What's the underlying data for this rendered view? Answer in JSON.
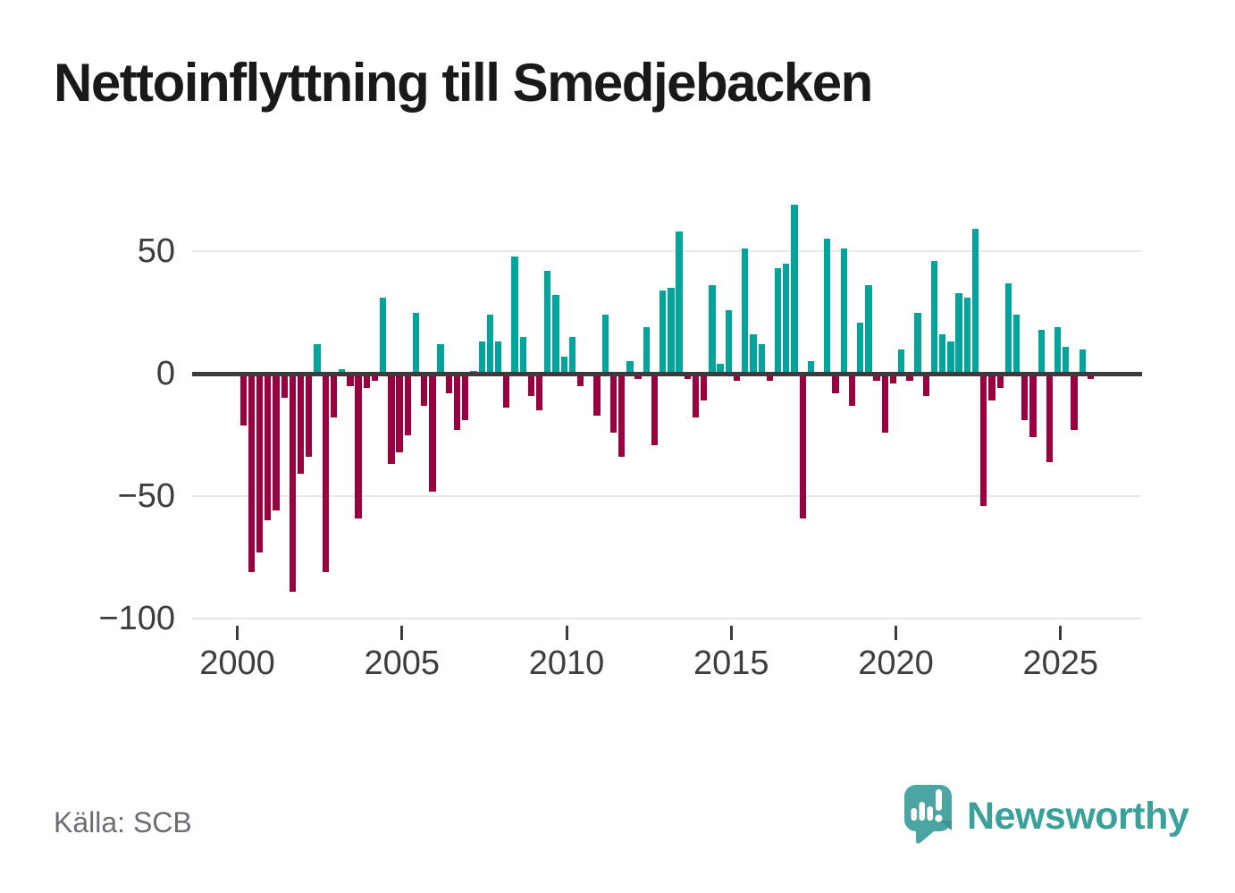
{
  "title": "Nettoinflyttning till Smedjebacken",
  "source": "Källa: SCB",
  "branding": {
    "logo_text": "Newsworthy",
    "logo_icon": "newsworthy-speech-bubble-bar-chart-icon"
  },
  "colors": {
    "positive_bar": "#00a49b",
    "negative_bar": "#9a0040",
    "zero_line": "#3b3b3b",
    "gridline": "#e8e8e8",
    "axis_text": "#3d3d3d",
    "title_text": "#191919",
    "source_text": "#6a6e74",
    "brand_teal": "#3aa09a",
    "logo_bubble": "#4ba6a3",
    "logo_bubble_shade": "#3f948f"
  },
  "chart_data": {
    "type": "bar",
    "title": "Nettoinflyttning till Smedjebacken",
    "frequency": "quarterly",
    "start_period": "2000 Q1",
    "end_period": "2025 Q4",
    "grid": "horizontal",
    "legend": "none",
    "ylim": [
      -100,
      72
    ],
    "y_ticks": [
      {
        "value": 50,
        "label": "50"
      },
      {
        "value": 0,
        "label": "0"
      },
      {
        "value": -50,
        "label": "−50"
      },
      {
        "value": -100,
        "label": "−100"
      }
    ],
    "x_ticks": [
      {
        "year": 2000,
        "label": "2000"
      },
      {
        "year": 2005,
        "label": "2005"
      },
      {
        "year": 2010,
        "label": "2010"
      },
      {
        "year": 2015,
        "label": "2015"
      },
      {
        "year": 2020,
        "label": "2020"
      },
      {
        "year": 2025,
        "label": "2025"
      }
    ],
    "values_by_year": [
      {
        "year": 2000,
        "q": [
          -21,
          -81,
          -73,
          -60
        ]
      },
      {
        "year": 2001,
        "q": [
          -56,
          -10,
          -89,
          -41
        ]
      },
      {
        "year": 2002,
        "q": [
          -34,
          12,
          -81,
          -18
        ]
      },
      {
        "year": 2003,
        "q": [
          2,
          -5,
          -59,
          -6
        ]
      },
      {
        "year": 2004,
        "q": [
          -3,
          31,
          -37,
          -32
        ]
      },
      {
        "year": 2005,
        "q": [
          -25,
          25,
          -13,
          -48
        ]
      },
      {
        "year": 2006,
        "q": [
          12,
          -8,
          -23,
          -19
        ]
      },
      {
        "year": 2007,
        "q": [
          1,
          13,
          24,
          13
        ]
      },
      {
        "year": 2008,
        "q": [
          -14,
          48,
          15,
          -9
        ]
      },
      {
        "year": 2009,
        "q": [
          -15,
          42,
          32,
          7
        ]
      },
      {
        "year": 2010,
        "q": [
          15,
          -5,
          0,
          -17
        ]
      },
      {
        "year": 2011,
        "q": [
          24,
          -24,
          -34,
          5
        ]
      },
      {
        "year": 2012,
        "q": [
          -2,
          19,
          -29,
          34
        ]
      },
      {
        "year": 2013,
        "q": [
          35,
          58,
          -2,
          -18
        ]
      },
      {
        "year": 2014,
        "q": [
          -11,
          36,
          4,
          26
        ]
      },
      {
        "year": 2015,
        "q": [
          -3,
          51,
          16,
          12
        ]
      },
      {
        "year": 2016,
        "q": [
          -3,
          43,
          45,
          69
        ]
      },
      {
        "year": 2017,
        "q": [
          -59,
          5,
          0,
          55
        ]
      },
      {
        "year": 2018,
        "q": [
          -8,
          51,
          -13,
          21
        ]
      },
      {
        "year": 2019,
        "q": [
          36,
          -3,
          -24,
          -4
        ]
      },
      {
        "year": 2020,
        "q": [
          10,
          -3,
          25,
          -9
        ]
      },
      {
        "year": 2021,
        "q": [
          46,
          16,
          13,
          33
        ]
      },
      {
        "year": 2022,
        "q": [
          31,
          59,
          -54,
          -11
        ]
      },
      {
        "year": 2023,
        "q": [
          -6,
          37,
          24,
          -19
        ]
      },
      {
        "year": 2024,
        "q": [
          -26,
          18,
          -36,
          19
        ]
      },
      {
        "year": 2025,
        "q": [
          11,
          -23,
          10,
          -2
        ]
      }
    ]
  }
}
